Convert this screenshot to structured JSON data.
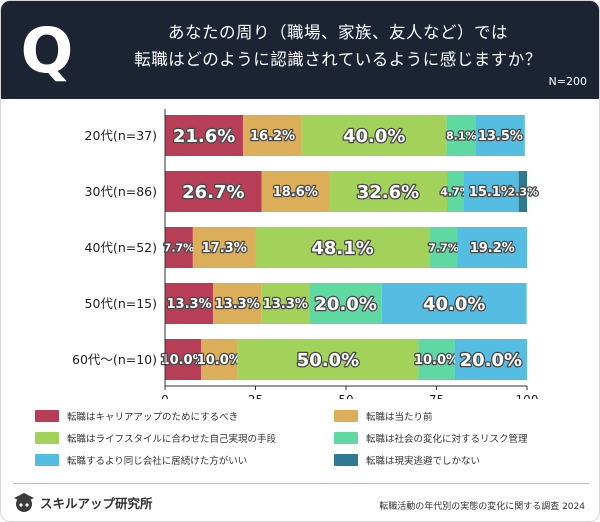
{
  "header": {
    "badge": "Q",
    "title_line1": "あなたの周り（職場、家族、友人など）では",
    "title_line2": "転職はどのように認識されているように感じますか？",
    "n_total": "N=200"
  },
  "colors": {
    "header_bg": "#1c2333",
    "series": [
      "#b83d57",
      "#ddae59",
      "#a3d25a",
      "#5fd8a1",
      "#55bde2",
      "#2f7995"
    ]
  },
  "chart_data": {
    "type": "bar",
    "orientation": "horizontal",
    "stacked": true,
    "categories": [
      "20代(n=37)",
      "30代(n=86)",
      "40代(n=52)",
      "50代(n=15)",
      "60代～(n=10)"
    ],
    "series": [
      {
        "name": "転職はキャリアアップのためにするべき",
        "values": [
          21.6,
          26.7,
          7.7,
          13.3,
          10.0
        ],
        "labels": [
          "21.6%",
          "26.7%",
          "7.7%",
          "13.3%",
          "10.0%"
        ]
      },
      {
        "name": "転職は当たり前",
        "values": [
          16.2,
          18.6,
          17.3,
          13.3,
          10.0
        ],
        "labels": [
          "16.2%",
          "18.6%",
          "17.3%",
          "13.3%",
          "10.0%"
        ]
      },
      {
        "name": "転職はライフスタイルに合わせた自己実現の手段",
        "values": [
          40.0,
          32.6,
          48.1,
          13.3,
          50.0
        ],
        "labels": [
          "40.0%",
          "32.6%",
          "48.1%",
          "13.3%",
          "50.0%"
        ]
      },
      {
        "name": "転職は社会の変化に対するリスク管理",
        "values": [
          8.1,
          4.7,
          7.7,
          20.0,
          10.0
        ],
        "labels": [
          "8.1%",
          "4.7%",
          "7.7%",
          "20.0%",
          "10.0%"
        ]
      },
      {
        "name": "転職するより同じ会社に居続けた方がいい",
        "values": [
          13.5,
          15.1,
          19.2,
          40.0,
          20.0
        ],
        "labels": [
          "13.5%",
          "15.1%",
          "19.2%",
          "40.0%",
          "20.0%"
        ]
      },
      {
        "name": "転職は現実逃避でしかない",
        "values": [
          0,
          2.3,
          0,
          0,
          0
        ],
        "labels": [
          "",
          "2.3%",
          "",
          "",
          ""
        ]
      }
    ],
    "xlim": [
      0,
      100
    ],
    "xticks": [
      "0",
      "25",
      "50",
      "75",
      "100"
    ],
    "legend_position": "bottom"
  },
  "footer": {
    "brand": "スキルアップ研究所",
    "source": "転職活動の年代別の実態の変化に関する調査 2024"
  }
}
